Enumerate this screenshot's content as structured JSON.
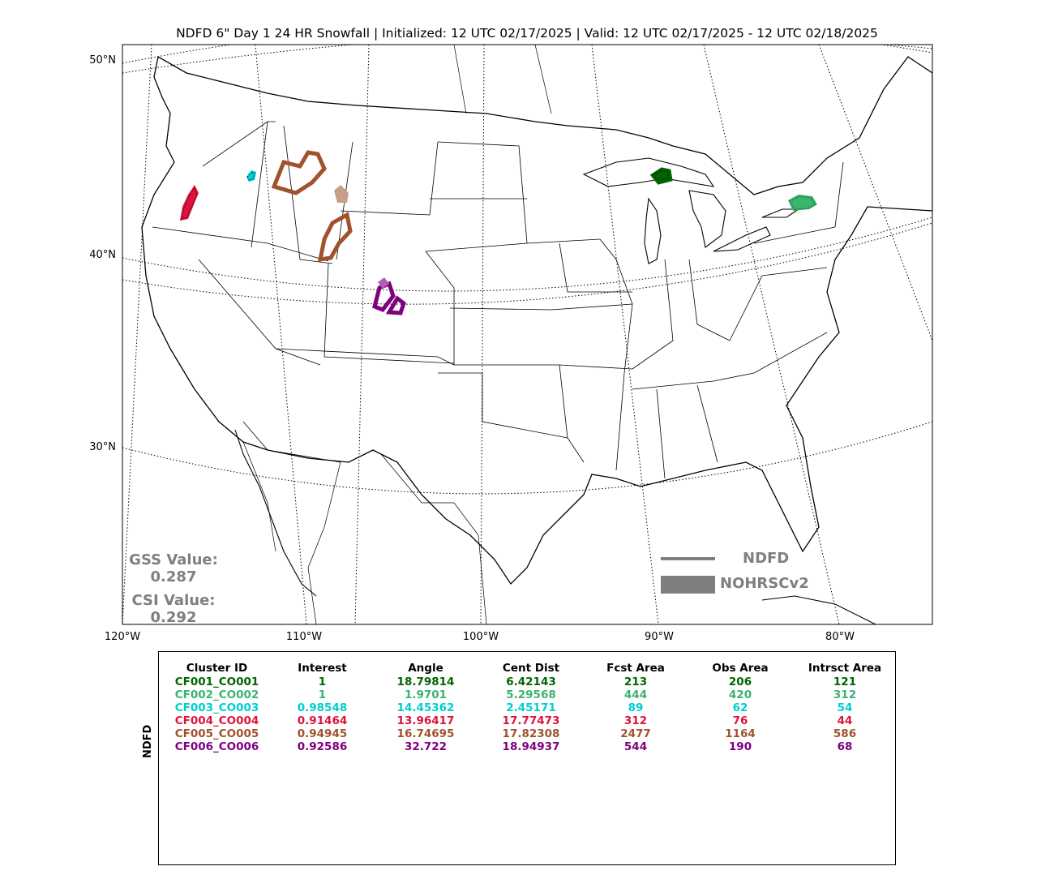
{
  "title": "NDFD 6\" Day 1 24 HR Snowfall | Initialized: 12 UTC 02/17/2025 | Valid: 12 UTC 02/17/2025 - 12 UTC 02/18/2025",
  "lat_labels": [
    "50°N",
    "40°N",
    "30°N"
  ],
  "lon_labels": [
    "120°W",
    "110°W",
    "100°W",
    "90°W",
    "80°W"
  ],
  "scores": {
    "gss_label": "GSS Value:",
    "gss_value": "0.287",
    "csi_label": "CSI Value:",
    "csi_value": "0.292"
  },
  "legend": {
    "forecast_label": "NDFD",
    "observed_label": "NOHRSCv2",
    "color": "#7f7f7f"
  },
  "table": {
    "side_label": "NDFD",
    "headers": [
      "Cluster ID",
      "Interest",
      "Angle",
      "Cent Dist",
      "Fcst Area",
      "Obs Area",
      "Intrsct Area"
    ],
    "rows": [
      {
        "color": "#006400",
        "cells": [
          "CF001_CO001",
          "1",
          "18.79814",
          "6.42143",
          "213",
          "206",
          "121"
        ]
      },
      {
        "color": "#3cb371",
        "cells": [
          "CF002_CO002",
          "1",
          "1.9701",
          "5.29568",
          "444",
          "420",
          "312"
        ]
      },
      {
        "color": "#00ced1",
        "cells": [
          "CF003_CO003",
          "0.98548",
          "14.45362",
          "2.45171",
          "89",
          "62",
          "54"
        ]
      },
      {
        "color": "#dc143c",
        "cells": [
          "CF004_CO004",
          "0.91464",
          "13.96417",
          "17.77473",
          "312",
          "76",
          "44"
        ]
      },
      {
        "color": "#a0522d",
        "cells": [
          "CF005_CO005",
          "0.94945",
          "16.74695",
          "17.82308",
          "2477",
          "1164",
          "586"
        ]
      },
      {
        "color": "#800080",
        "cells": [
          "CF006_CO006",
          "0.92586",
          "32.722",
          "18.94937",
          "544",
          "190",
          "68"
        ]
      }
    ]
  }
}
